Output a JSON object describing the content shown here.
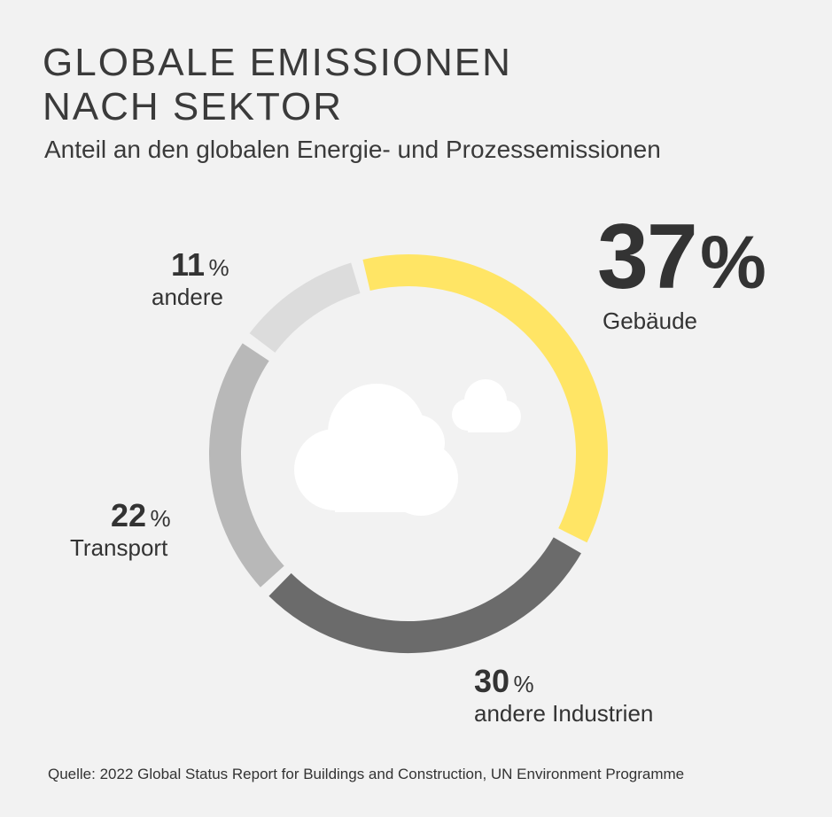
{
  "title_line1": "GLOBALE EMISSIONEN",
  "title_line2": "NACH SEKTOR",
  "subtitle": "Anteil an den globalen Energie- und Prozessemissionen",
  "source": "Quelle: 2022 Global Status Report for Buildings and Construction, UN Environment Programme",
  "percent_sign": "%",
  "chart_data": {
    "type": "pie",
    "variant": "donut",
    "categories": [
      "Gebäude",
      "andere Industrien",
      "Transport",
      "andere"
    ],
    "values": [
      37,
      30,
      22,
      11
    ],
    "value_labels": [
      "37",
      "30",
      "22",
      "11"
    ],
    "colors": [
      "#ffe565",
      "#6b6b6b",
      "#b8b8b8",
      "#dcdcdc"
    ],
    "center_icon": "cloud-icon"
  }
}
